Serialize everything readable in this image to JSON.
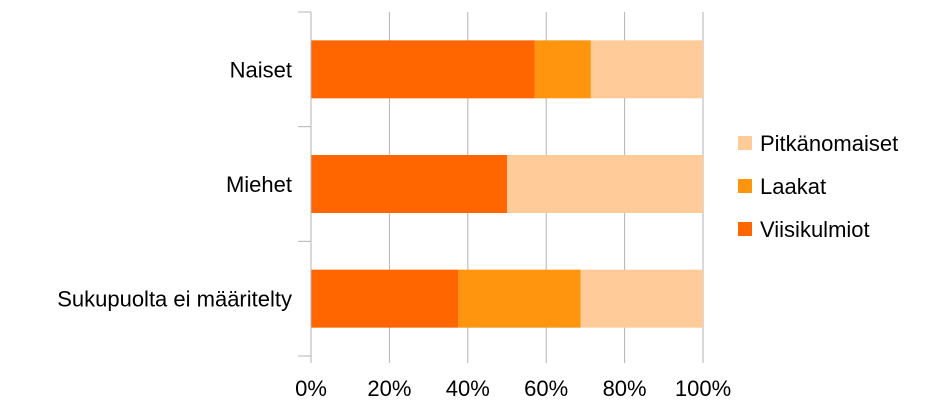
{
  "chart_data": {
    "type": "bar",
    "orientation": "horizontal",
    "stacked": "percent",
    "categories": [
      "Naiset",
      "Miehet",
      "Sukupuolta ei määritelty"
    ],
    "series": [
      {
        "name": "Viisikulmiot",
        "color": "#ff6600",
        "values": [
          57.1,
          50.0,
          37.5
        ]
      },
      {
        "name": "Laakat",
        "color": "#ff950e",
        "values": [
          14.3,
          0.0,
          31.25
        ]
      },
      {
        "name": "Pitkänomaiset",
        "color": "#ffcc99",
        "values": [
          28.6,
          50.0,
          31.25
        ]
      }
    ],
    "xlim": [
      0,
      100
    ],
    "xticks": [
      "0%",
      "20%",
      "40%",
      "60%",
      "80%",
      "100%"
    ],
    "grid": true,
    "legend_position": "right",
    "legend_order": [
      "Pitkänomaiset",
      "Laakat",
      "Viisikulmiot"
    ],
    "title": "",
    "xlabel": "",
    "ylabel": ""
  }
}
